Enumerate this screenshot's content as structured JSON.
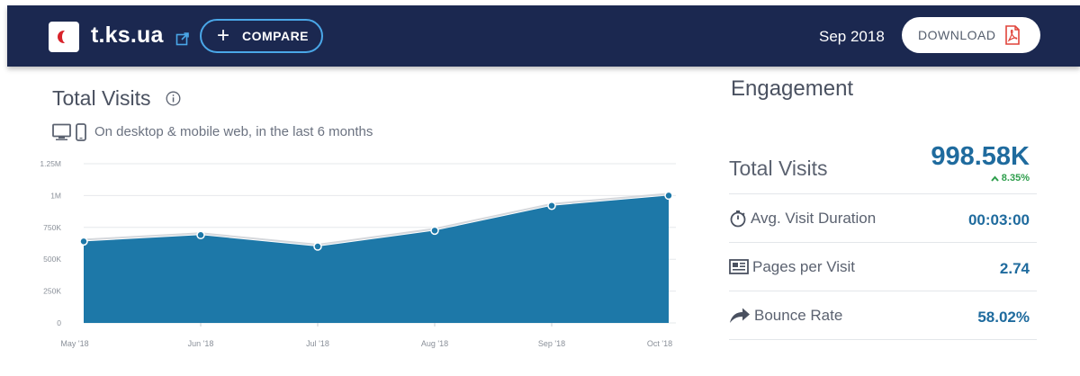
{
  "header": {
    "site_name": "t.ks.ua",
    "compare_label": "COMPARE",
    "period": "Sep 2018",
    "download_label": "DOWNLOAD",
    "colors": {
      "bar": "#1b2850",
      "accent": "#4aa7e8"
    }
  },
  "total_visits": {
    "title": "Total Visits",
    "subtitle": "On desktop & mobile web, in the last 6 months"
  },
  "chart_data": {
    "type": "area",
    "categories": [
      "May '18",
      "Jun '18",
      "Jul '18",
      "Aug '18",
      "Sep '18",
      "Oct '18"
    ],
    "series": [
      {
        "values": [
          640000,
          690000,
          600000,
          725000,
          920000,
          1000000
        ]
      }
    ],
    "y_ticks": [
      0,
      250000,
      500000,
      750000,
      1000000,
      1250000
    ],
    "y_tick_labels": [
      "0",
      "250K",
      "500K",
      "750K",
      "1M",
      "1.25M"
    ],
    "ylim": [
      0,
      1250000
    ],
    "grid": true,
    "colors": {
      "fill": "#1d78a8",
      "point": "#1d78a8"
    }
  },
  "engagement": {
    "title": "Engagement",
    "total_visits_label": "Total Visits",
    "total_visits_value": "998.58K",
    "total_visits_change": "8.35%",
    "avg_duration_label": "Avg. Visit Duration",
    "avg_duration_value": "00:03:00",
    "pages_label": "Pages per Visit",
    "pages_value": "2.74",
    "bounce_label": "Bounce Rate",
    "bounce_value": "58.02%"
  }
}
